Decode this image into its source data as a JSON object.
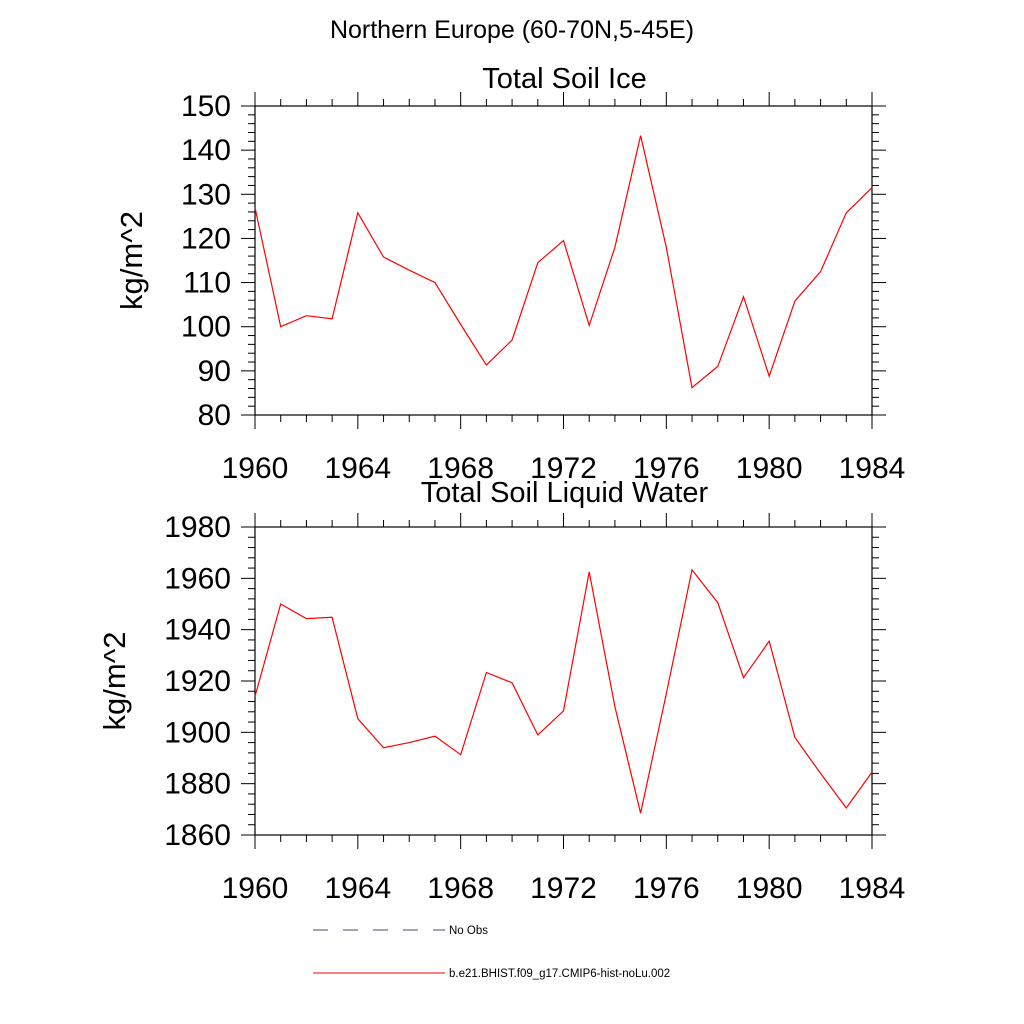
{
  "figure": {
    "title": "Northern Europe (60-70N,5-45E)"
  },
  "chart_data": [
    {
      "type": "line",
      "title": "Total Soil Ice",
      "xlabel": "",
      "ylabel": "kg/m^2",
      "xlim": [
        1960,
        1984
      ],
      "ylim": [
        80,
        150
      ],
      "xticks": [
        1960,
        1964,
        1968,
        1972,
        1976,
        1980,
        1984
      ],
      "yticks": [
        80,
        90,
        100,
        110,
        120,
        130,
        140,
        150
      ],
      "x": [
        1960,
        1961,
        1962,
        1963,
        1964,
        1965,
        1966,
        1967,
        1968,
        1969,
        1970,
        1971,
        1972,
        1973,
        1974,
        1975,
        1976,
        1977,
        1978,
        1979,
        1980,
        1981,
        1982,
        1983,
        1984
      ],
      "series": [
        {
          "name": "b.e21.BHIST.f09_g17.CMIP6-hist-noLu.002",
          "color": "#ff0000",
          "values": [
            127,
            100,
            102.5,
            101.8,
            125.8,
            115.8,
            112.8,
            110,
            100.5,
            91.3,
            97,
            114.5,
            119.5,
            100.3,
            118,
            143.3,
            118,
            86.2,
            91,
            106.8,
            88.8,
            105.8,
            112.5,
            125.8,
            131.5
          ]
        }
      ]
    },
    {
      "type": "line",
      "title": "Total Soil Liquid Water",
      "xlabel": "",
      "ylabel": "kg/m^2",
      "xlim": [
        1960,
        1984
      ],
      "ylim": [
        1860,
        1980
      ],
      "xticks": [
        1960,
        1964,
        1968,
        1972,
        1976,
        1980,
        1984
      ],
      "yticks": [
        1860,
        1880,
        1900,
        1920,
        1940,
        1960,
        1980
      ],
      "x": [
        1960,
        1961,
        1962,
        1963,
        1964,
        1965,
        1966,
        1967,
        1968,
        1969,
        1970,
        1971,
        1972,
        1973,
        1974,
        1975,
        1976,
        1977,
        1978,
        1979,
        1980,
        1981,
        1982,
        1983,
        1984
      ],
      "series": [
        {
          "name": "b.e21.BHIST.f09_g17.CMIP6-hist-noLu.002",
          "color": "#ff0000",
          "values": [
            1914,
            1950,
            1944.3,
            1944.8,
            1905.3,
            1894,
            1896,
            1898.5,
            1891.3,
            1923.3,
            1919.3,
            1899,
            1908.3,
            1962.5,
            1910,
            1868.5,
            1915,
            1963.3,
            1950.5,
            1921.3,
            1935.5,
            1898,
            1884,
            1870.5,
            1884.5
          ]
        }
      ]
    }
  ],
  "legend": {
    "items": [
      {
        "label": "No Obs",
        "style": "dashed",
        "color": "#4a4a6a"
      },
      {
        "label": "b.e21.BHIST.f09_g17.CMIP6-hist-noLu.002",
        "style": "solid",
        "color": "#ff0000"
      }
    ]
  }
}
